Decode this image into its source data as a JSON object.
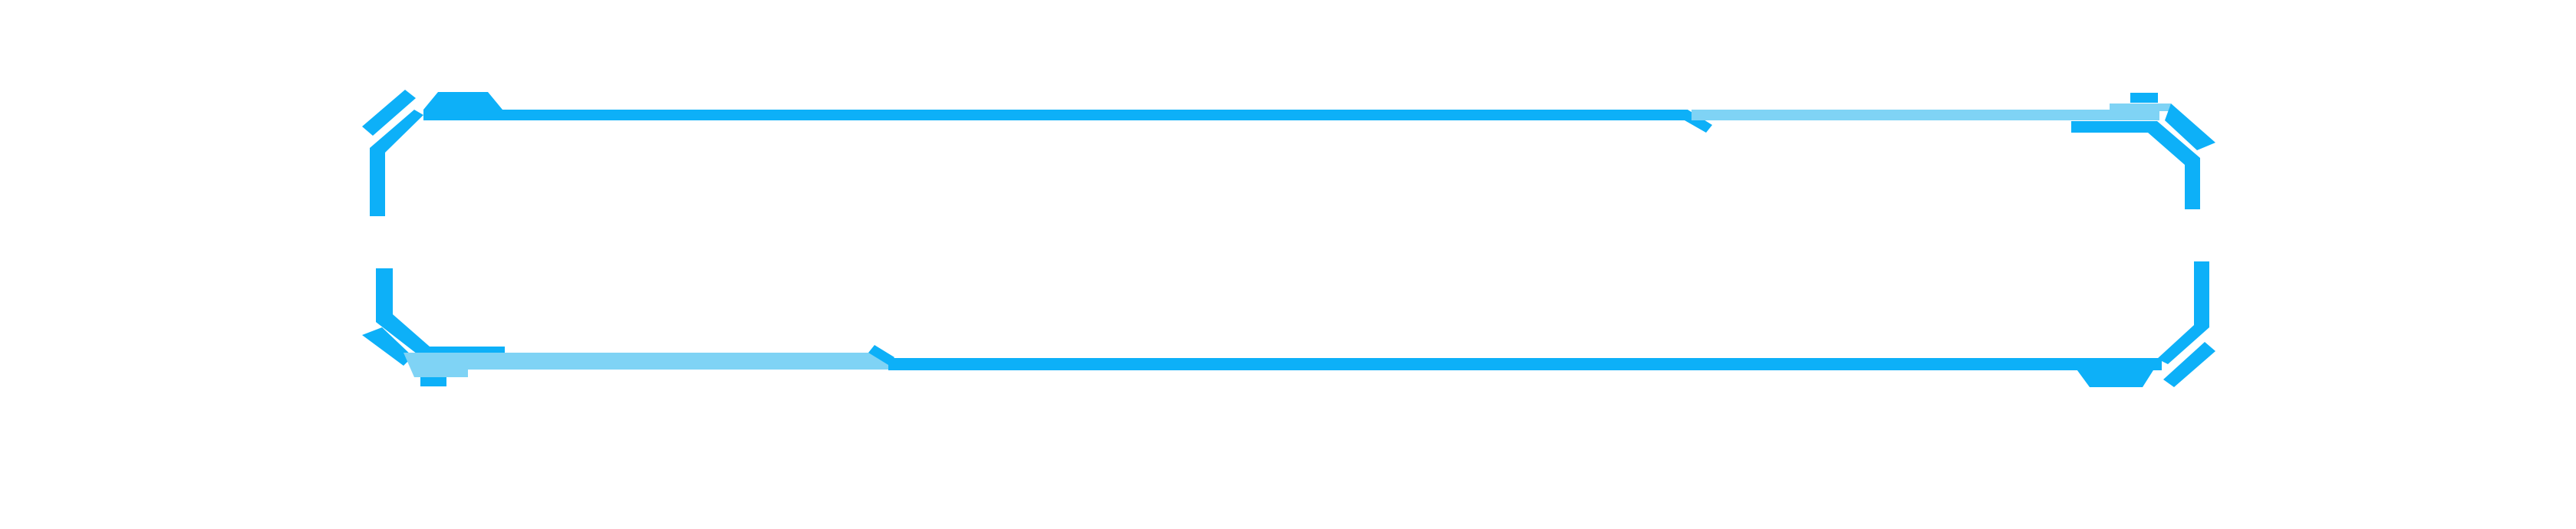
{
  "frame": {
    "colors": {
      "primary": "#0db0f8",
      "secondary": "#7fd3f5",
      "background": "#ffffff"
    }
  }
}
